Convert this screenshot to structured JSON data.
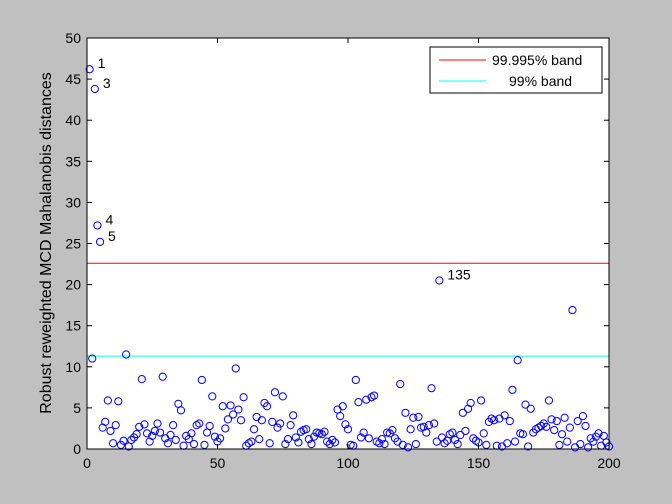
{
  "chart_data": {
    "type": "scatter",
    "ylabel": "Robust reweighted MCD Mahalanobis distances",
    "xlim": [
      0,
      200
    ],
    "ylim": [
      0,
      50
    ],
    "xticks": [
      "0",
      "50",
      "100",
      "150",
      "200"
    ],
    "yticks": [
      "0",
      "5",
      "10",
      "15",
      "20",
      "25",
      "30",
      "35",
      "40",
      "45",
      "50"
    ],
    "grid": false,
    "legend_position": "top-right",
    "marker": "open-circle",
    "marker_color": "#0000ff",
    "lines": [
      {
        "name": "99.995% band",
        "y": 22.6,
        "color": "#ff0000"
      },
      {
        "name": "99% band",
        "y": 11.3,
        "color": "#00ffff"
      }
    ],
    "labeled_points": [
      {
        "label": "1",
        "x": 1,
        "y": 46.2
      },
      {
        "label": "3",
        "x": 3,
        "y": 43.8
      },
      {
        "label": "4",
        "x": 4,
        "y": 27.2
      },
      {
        "label": "5",
        "x": 5,
        "y": 25.2
      },
      {
        "label": "135",
        "x": 135,
        "y": 20.5
      }
    ],
    "points": [
      [
        1,
        46.2
      ],
      [
        2,
        11.0
      ],
      [
        3,
        43.8
      ],
      [
        4,
        27.2
      ],
      [
        5,
        25.2
      ],
      [
        6,
        2.6
      ],
      [
        7,
        3.3
      ],
      [
        8,
        5.9
      ],
      [
        9,
        2.2
      ],
      [
        10,
        0.7
      ],
      [
        11,
        2.9
      ],
      [
        12,
        5.8
      ],
      [
        13,
        0.5
      ],
      [
        14,
        1.0
      ],
      [
        15,
        11.5
      ],
      [
        16,
        0.3
      ],
      [
        17,
        1.1
      ],
      [
        18,
        1.4
      ],
      [
        19,
        1.8
      ],
      [
        20,
        2.7
      ],
      [
        21,
        8.5
      ],
      [
        22,
        3.0
      ],
      [
        23,
        1.9
      ],
      [
        24,
        0.9
      ],
      [
        25,
        1.6
      ],
      [
        26,
        2.2
      ],
      [
        27,
        3.1
      ],
      [
        28,
        2.0
      ],
      [
        29,
        8.8
      ],
      [
        30,
        1.3
      ],
      [
        31,
        0.7
      ],
      [
        32,
        1.7
      ],
      [
        33,
        2.9
      ],
      [
        34,
        1.1
      ],
      [
        35,
        5.5
      ],
      [
        36,
        4.7
      ],
      [
        37,
        0.4
      ],
      [
        38,
        1.6
      ],
      [
        39,
        1.2
      ],
      [
        40,
        1.9
      ],
      [
        41,
        0.6
      ],
      [
        42,
        2.9
      ],
      [
        43,
        3.1
      ],
      [
        44,
        8.4
      ],
      [
        45,
        0.5
      ],
      [
        46,
        2.0
      ],
      [
        47,
        2.8
      ],
      [
        48,
        6.4
      ],
      [
        49,
        1.5
      ],
      [
        50,
        0.9
      ],
      [
        51,
        1.3
      ],
      [
        52,
        5.2
      ],
      [
        53,
        2.5
      ],
      [
        54,
        3.6
      ],
      [
        55,
        5.3
      ],
      [
        56,
        4.2
      ],
      [
        57,
        9.8
      ],
      [
        58,
        4.8
      ],
      [
        59,
        3.5
      ],
      [
        60,
        6.3
      ],
      [
        61,
        0.4
      ],
      [
        62,
        0.7
      ],
      [
        63,
        0.9
      ],
      [
        64,
        2.4
      ],
      [
        65,
        3.9
      ],
      [
        66,
        1.2
      ],
      [
        67,
        3.5
      ],
      [
        68,
        5.6
      ],
      [
        69,
        5.2
      ],
      [
        70,
        0.7
      ],
      [
        71,
        3.3
      ],
      [
        72,
        6.9
      ],
      [
        73,
        2.6
      ],
      [
        74,
        3.1
      ],
      [
        75,
        6.4
      ],
      [
        76,
        0.6
      ],
      [
        77,
        1.2
      ],
      [
        78,
        2.9
      ],
      [
        79,
        4.1
      ],
      [
        80,
        1.4
      ],
      [
        81,
        0.8
      ],
      [
        82,
        2.1
      ],
      [
        83,
        2.3
      ],
      [
        84,
        2.4
      ],
      [
        85,
        1.2
      ],
      [
        86,
        0.6
      ],
      [
        87,
        1.5
      ],
      [
        88,
        2.0
      ],
      [
        89,
        1.9
      ],
      [
        90,
        1.8
      ],
      [
        91,
        2.1
      ],
      [
        92,
        0.9
      ],
      [
        93,
        0.6
      ],
      [
        94,
        1.1
      ],
      [
        95,
        0.8
      ],
      [
        96,
        4.8
      ],
      [
        97,
        4.0
      ],
      [
        98,
        5.2
      ],
      [
        99,
        3.0
      ],
      [
        100,
        2.4
      ],
      [
        101,
        0.5
      ],
      [
        102,
        0.4
      ],
      [
        103,
        8.4
      ],
      [
        104,
        5.7
      ],
      [
        105,
        1.4
      ],
      [
        106,
        2.0
      ],
      [
        107,
        6.0
      ],
      [
        108,
        1.3
      ],
      [
        109,
        6.3
      ],
      [
        110,
        6.5
      ],
      [
        111,
        0.9
      ],
      [
        112,
        0.7
      ],
      [
        113,
        1.2
      ],
      [
        114,
        0.6
      ],
      [
        115,
        2.0
      ],
      [
        116,
        1.9
      ],
      [
        117,
        2.3
      ],
      [
        118,
        1.3
      ],
      [
        119,
        0.9
      ],
      [
        120,
        7.9
      ],
      [
        121,
        0.5
      ],
      [
        122,
        4.4
      ],
      [
        123,
        0.2
      ],
      [
        124,
        2.4
      ],
      [
        125,
        3.8
      ],
      [
        126,
        0.6
      ],
      [
        127,
        3.9
      ],
      [
        128,
        2.6
      ],
      [
        129,
        2.7
      ],
      [
        130,
        2.0
      ],
      [
        131,
        2.9
      ],
      [
        132,
        7.4
      ],
      [
        133,
        3.1
      ],
      [
        134,
        0.9
      ],
      [
        135,
        20.5
      ],
      [
        136,
        1.4
      ],
      [
        137,
        0.7
      ],
      [
        138,
        1.0
      ],
      [
        139,
        1.8
      ],
      [
        140,
        2.0
      ],
      [
        141,
        1.1
      ],
      [
        142,
        0.6
      ],
      [
        143,
        1.7
      ],
      [
        144,
        4.4
      ],
      [
        145,
        2.2
      ],
      [
        146,
        4.9
      ],
      [
        147,
        5.6
      ],
      [
        148,
        1.3
      ],
      [
        149,
        1.0
      ],
      [
        150,
        0.8
      ],
      [
        151,
        5.9
      ],
      [
        152,
        1.9
      ],
      [
        153,
        0.5
      ],
      [
        154,
        3.3
      ],
      [
        155,
        3.7
      ],
      [
        156,
        3.5
      ],
      [
        157,
        0.4
      ],
      [
        158,
        3.7
      ],
      [
        159,
        0.3
      ],
      [
        160,
        4.1
      ],
      [
        161,
        0.7
      ],
      [
        162,
        3.4
      ],
      [
        163,
        7.2
      ],
      [
        164,
        0.9
      ],
      [
        165,
        10.8
      ],
      [
        166,
        1.9
      ],
      [
        167,
        1.8
      ],
      [
        168,
        5.4
      ],
      [
        169,
        0.3
      ],
      [
        170,
        4.9
      ],
      [
        171,
        2.0
      ],
      [
        172,
        2.4
      ],
      [
        173,
        2.6
      ],
      [
        174,
        2.8
      ],
      [
        175,
        3.1
      ],
      [
        176,
        2.7
      ],
      [
        177,
        5.9
      ],
      [
        178,
        3.6
      ],
      [
        179,
        2.3
      ],
      [
        180,
        3.4
      ],
      [
        181,
        0.5
      ],
      [
        182,
        1.8
      ],
      [
        183,
        3.8
      ],
      [
        184,
        0.9
      ],
      [
        185,
        2.6
      ],
      [
        186,
        16.9
      ],
      [
        187,
        0.2
      ],
      [
        188,
        3.4
      ],
      [
        189,
        0.6
      ],
      [
        190,
        4.0
      ],
      [
        191,
        2.8
      ],
      [
        192,
        0.2
      ],
      [
        193,
        1.3
      ],
      [
        194,
        0.9
      ],
      [
        195,
        1.5
      ],
      [
        196,
        1.9
      ],
      [
        197,
        0.4
      ],
      [
        198,
        1.6
      ],
      [
        199,
        0.8
      ],
      [
        200,
        0.3
      ]
    ]
  }
}
